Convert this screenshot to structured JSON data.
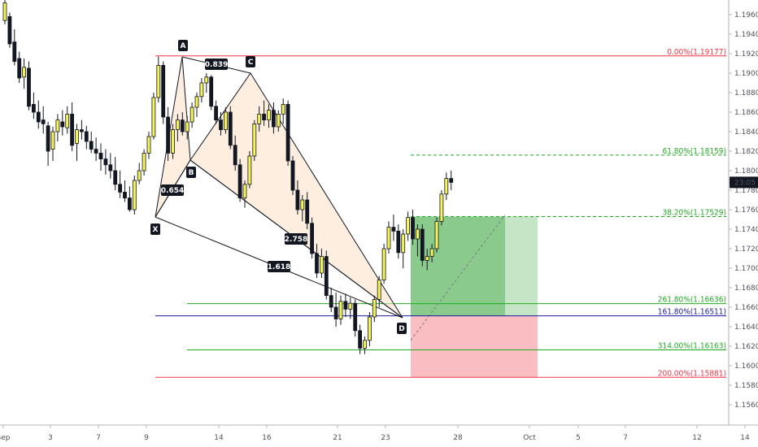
{
  "chart_data": {
    "type": "candlestick",
    "x_ticks": [
      "Sep",
      "3",
      "7",
      "9",
      "14",
      "16",
      "21",
      "23",
      "28",
      "Oct",
      "5",
      "7",
      "12",
      "14"
    ],
    "y_ticks": [
      "1.19600",
      "1.19400",
      "1.19200",
      "1.19000",
      "1.18800",
      "1.18600",
      "1.18400",
      "1.18200",
      "1.18000",
      "1.17800",
      "1.17600",
      "1.17400",
      "1.17200",
      "1.17000",
      "1.16800",
      "1.16600",
      "1.16400",
      "1.16200",
      "1.16000",
      "1.15800",
      "1.15600"
    ],
    "ylim": [
      1.1558,
      1.198
    ],
    "last_price": "23:05",
    "pattern_points": [
      {
        "label": "X",
        "price": 1.1755
      },
      {
        "label": "A",
        "price": 1.1917
      },
      {
        "label": "B",
        "price": 1.181
      },
      {
        "label": "C",
        "price": 1.19
      },
      {
        "label": "D",
        "price": 1.1655
      }
    ],
    "ratios": [
      {
        "label": "0.839",
        "leg": "AC"
      },
      {
        "label": "0.654",
        "leg": "XB"
      },
      {
        "label": "2.758",
        "leg": "BD"
      },
      {
        "label": "1.618",
        "leg": "XD"
      }
    ],
    "fib_levels": [
      {
        "label": "0.00%(1.19177)",
        "price": 1.19177,
        "color": "#f23645",
        "style": "solid"
      },
      {
        "label": "61.80%(1.18159)",
        "price": 1.18159,
        "color": "#22ab22",
        "style": "dashed"
      },
      {
        "label": "38.20%(1.17529)",
        "price": 1.17529,
        "color": "#22ab22",
        "style": "dashed"
      },
      {
        "label": "261.80%(1.16636)",
        "price": 1.16636,
        "color": "#22ab22",
        "style": "solid"
      },
      {
        "label": "161.80%(1.16511)",
        "price": 1.16511,
        "color": "#1a1aa0",
        "style": "solid"
      },
      {
        "label": "314.00%(1.16163)",
        "price": 1.16163,
        "color": "#22ab22",
        "style": "solid"
      },
      {
        "label": "200.00%(1.15881)",
        "price": 1.15881,
        "color": "#f23645",
        "style": "solid"
      }
    ],
    "position": {
      "entry": 1.16511,
      "target": 1.17529,
      "stop": 1.15881
    },
    "candles": [
      [
        1.1954,
        1.1975,
        1.195,
        1.1972
      ],
      [
        1.1958,
        1.1962,
        1.1926,
        1.193
      ],
      [
        1.1932,
        1.1945,
        1.1908,
        1.1912
      ],
      [
        1.1915,
        1.1922,
        1.189,
        1.1895
      ],
      [
        1.1896,
        1.1915,
        1.1884,
        1.1906
      ],
      [
        1.1905,
        1.1912,
        1.1862,
        1.1866
      ],
      [
        1.1868,
        1.188,
        1.1853,
        1.186
      ],
      [
        1.186,
        1.1872,
        1.1843,
        1.185
      ],
      [
        1.1852,
        1.1866,
        1.1838,
        1.1848
      ],
      [
        1.1846,
        1.185,
        1.1805,
        1.182
      ],
      [
        1.1822,
        1.1845,
        1.181,
        1.184
      ],
      [
        1.184,
        1.1858,
        1.183,
        1.1852
      ],
      [
        1.185,
        1.1862,
        1.1836,
        1.1845
      ],
      [
        1.1844,
        1.1866,
        1.1838,
        1.1858
      ],
      [
        1.1858,
        1.187,
        1.182,
        1.1826
      ],
      [
        1.1828,
        1.1848,
        1.181,
        1.1842
      ],
      [
        1.1842,
        1.1852,
        1.1832,
        1.184
      ],
      [
        1.184,
        1.1846,
        1.1822,
        1.183
      ],
      [
        1.183,
        1.184,
        1.1818,
        1.1822
      ],
      [
        1.1822,
        1.1834,
        1.181,
        1.1818
      ],
      [
        1.1818,
        1.1828,
        1.18,
        1.1812
      ],
      [
        1.1812,
        1.1822,
        1.1796,
        1.1806
      ],
      [
        1.1806,
        1.1818,
        1.1792,
        1.18
      ],
      [
        1.18,
        1.1814,
        1.178,
        1.1786
      ],
      [
        1.1786,
        1.18,
        1.1772,
        1.1778
      ],
      [
        1.1778,
        1.179,
        1.1768,
        1.1772
      ],
      [
        1.1772,
        1.1784,
        1.1758,
        1.176
      ],
      [
        1.176,
        1.1795,
        1.1755,
        1.179
      ],
      [
        1.179,
        1.1808,
        1.1786,
        1.18
      ],
      [
        1.18,
        1.1822,
        1.1795,
        1.1818
      ],
      [
        1.1818,
        1.184,
        1.1812,
        1.1835
      ],
      [
        1.1835,
        1.188,
        1.1832,
        1.1875
      ],
      [
        1.1875,
        1.1917,
        1.187,
        1.1908
      ],
      [
        1.1908,
        1.1912,
        1.1848,
        1.1855
      ],
      [
        1.1855,
        1.1865,
        1.181,
        1.1818
      ],
      [
        1.1818,
        1.1848,
        1.1812,
        1.1842
      ],
      [
        1.1842,
        1.1858,
        1.183,
        1.1852
      ],
      [
        1.1852,
        1.186,
        1.1836,
        1.184
      ],
      [
        1.184,
        1.1856,
        1.1832,
        1.185
      ],
      [
        1.185,
        1.187,
        1.1844,
        1.1865
      ],
      [
        1.1865,
        1.188,
        1.1855,
        1.1876
      ],
      [
        1.1876,
        1.1895,
        1.187,
        1.189
      ],
      [
        1.189,
        1.19,
        1.188,
        1.1896
      ],
      [
        1.1896,
        1.1898,
        1.1862,
        1.1866
      ],
      [
        1.1866,
        1.1872,
        1.1848,
        1.1852
      ],
      [
        1.1852,
        1.186,
        1.1836,
        1.1842
      ],
      [
        1.1842,
        1.1865,
        1.1838,
        1.186
      ],
      [
        1.186,
        1.1866,
        1.1822,
        1.1826
      ],
      [
        1.1826,
        1.1836,
        1.18,
        1.1806
      ],
      [
        1.1806,
        1.1812,
        1.1768,
        1.1772
      ],
      [
        1.1772,
        1.179,
        1.1762,
        1.1786
      ],
      [
        1.1786,
        1.182,
        1.1782,
        1.1815
      ],
      [
        1.1815,
        1.1852,
        1.181,
        1.1848
      ],
      [
        1.1848,
        1.1866,
        1.184,
        1.1858
      ],
      [
        1.1858,
        1.1872,
        1.1846,
        1.1852
      ],
      [
        1.1852,
        1.1868,
        1.1844,
        1.1862
      ],
      [
        1.1862,
        1.187,
        1.1838,
        1.1845
      ],
      [
        1.1845,
        1.1862,
        1.184,
        1.1858
      ],
      [
        1.1858,
        1.1874,
        1.1848,
        1.1868
      ],
      [
        1.1868,
        1.1872,
        1.1805,
        1.181
      ],
      [
        1.181,
        1.1815,
        1.1775,
        1.178
      ],
      [
        1.178,
        1.179,
        1.1755,
        1.176
      ],
      [
        1.176,
        1.1775,
        1.1748,
        1.177
      ],
      [
        1.177,
        1.1778,
        1.174,
        1.1746
      ],
      [
        1.1746,
        1.1752,
        1.171,
        1.1715
      ],
      [
        1.1715,
        1.1725,
        1.169,
        1.1695
      ],
      [
        1.1695,
        1.172,
        1.169,
        1.1712
      ],
      [
        1.1712,
        1.1718,
        1.1668,
        1.1672
      ],
      [
        1.1672,
        1.168,
        1.1655,
        1.166
      ],
      [
        1.166,
        1.1675,
        1.164,
        1.1648
      ],
      [
        1.1648,
        1.1672,
        1.1642,
        1.1666
      ],
      [
        1.1666,
        1.1674,
        1.165,
        1.1658
      ],
      [
        1.1658,
        1.167,
        1.1648,
        1.1664
      ],
      [
        1.1664,
        1.1668,
        1.163,
        1.1636
      ],
      [
        1.1636,
        1.1642,
        1.1612,
        1.1618
      ],
      [
        1.1618,
        1.163,
        1.1612,
        1.1626
      ],
      [
        1.1626,
        1.1655,
        1.162,
        1.165
      ],
      [
        1.165,
        1.1672,
        1.1645,
        1.1668
      ],
      [
        1.1668,
        1.1692,
        1.166,
        1.1688
      ],
      [
        1.1688,
        1.1725,
        1.1684,
        1.172
      ],
      [
        1.172,
        1.1748,
        1.1715,
        1.1742
      ],
      [
        1.1742,
        1.1755,
        1.1728,
        1.1738
      ],
      [
        1.1738,
        1.1745,
        1.171,
        1.1716
      ],
      [
        1.1716,
        1.174,
        1.17,
        1.1735
      ],
      [
        1.1735,
        1.1758,
        1.1728,
        1.1752
      ],
      [
        1.1752,
        1.176,
        1.1724,
        1.173
      ],
      [
        1.173,
        1.1745,
        1.1712,
        1.174
      ],
      [
        1.174,
        1.1745,
        1.1702,
        1.1708
      ],
      [
        1.1708,
        1.172,
        1.1698,
        1.1712
      ],
      [
        1.1712,
        1.1725,
        1.1706,
        1.172
      ],
      [
        1.172,
        1.1752,
        1.1716,
        1.1748
      ],
      [
        1.1748,
        1.178,
        1.1744,
        1.1776
      ],
      [
        1.1776,
        1.1798,
        1.177,
        1.1792
      ],
      [
        1.1792,
        1.18,
        1.178,
        1.1788
      ]
    ]
  }
}
